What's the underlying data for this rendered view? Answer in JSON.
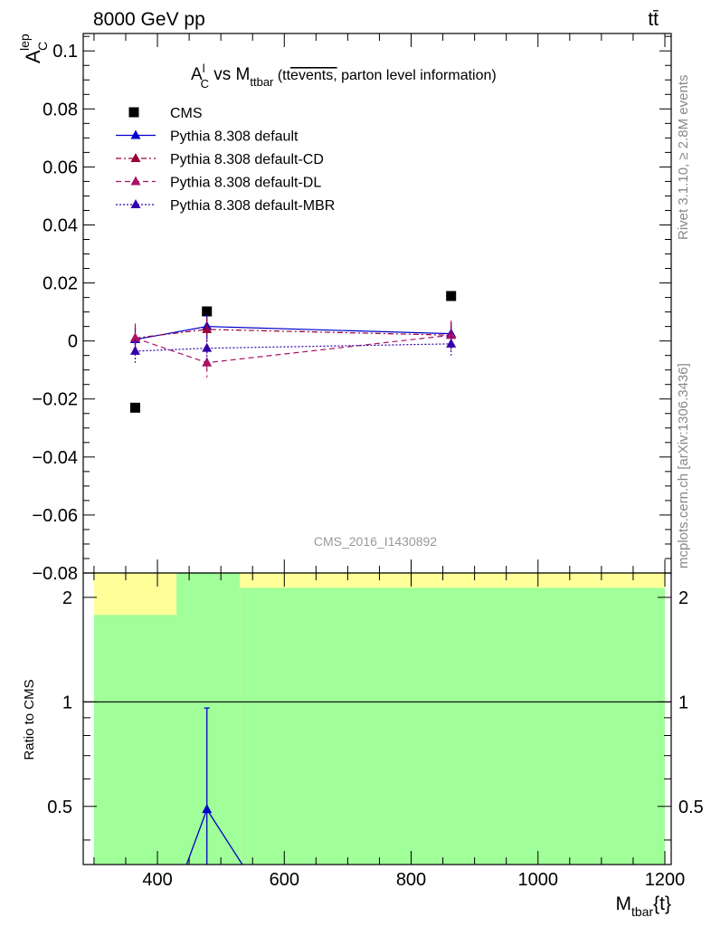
{
  "header": {
    "energy_label": "8000 GeV pp",
    "process_label": "tt̄"
  },
  "side_labels": {
    "rivet": "Rivet 3.1.10, ≥ 2.8M events",
    "source": "mcplots.cern.ch [arXiv:1306.3436]"
  },
  "colors": {
    "data": "#000000",
    "default": "#0000cc",
    "cd": "#990033",
    "dl": "#aa1166",
    "mbr": "#3300aa",
    "band_inner": "#a0ff99",
    "band_outer": "#ffff99"
  },
  "chart_data": [
    {
      "type": "line",
      "title_parts": {
        "a": "A",
        "a_sup": "l",
        "a_sub": "C",
        "vs": " vs M",
        "m_sub": "ttbar",
        "paren_open": " (tt",
        "overline": "events,",
        "rest": " parton level information)"
      },
      "ylabel": {
        "main": "A",
        "sup": "lep",
        "sub": "C"
      },
      "analysis_label": "CMS_2016_I1430892",
      "xlim": [
        283,
        1210
      ],
      "ylim": [
        -0.08,
        0.106
      ],
      "y_ticks": [
        0.1,
        0.08,
        0.06,
        0.04,
        0.02,
        0,
        -0.02,
        -0.04,
        -0.06,
        -0.08
      ],
      "y_tick_labels": [
        "0.1",
        "0.08",
        "0.06",
        "0.04",
        "0.02",
        "0",
        "−0.02",
        "−0.04",
        "−0.06",
        "−0.08"
      ],
      "legend_placement": "top-left",
      "x": [
        365,
        478,
        863
      ],
      "series": [
        {
          "name": "CMS",
          "style": "data",
          "values": [
            -0.023,
            0.0102,
            0.0155
          ]
        },
        {
          "name": "Pythia 8.308 default",
          "style": "solid",
          "values": [
            0.0005,
            0.005,
            0.0025
          ],
          "err": [
            0.004,
            0.004,
            0.004
          ]
        },
        {
          "name": "Pythia 8.308 default-CD",
          "style": "dashdot",
          "values": [
            0.001,
            0.004,
            0.002
          ],
          "err": [
            0.004,
            0.004,
            0.004
          ]
        },
        {
          "name": "Pythia 8.308 default-DL",
          "style": "dashed",
          "values": [
            0.001,
            -0.0075,
            0.002
          ],
          "err": [
            0.005,
            0.005,
            0.005
          ]
        },
        {
          "name": "Pythia 8.308 default-MBR",
          "style": "dotted",
          "values": [
            -0.0035,
            -0.0025,
            -0.001
          ],
          "err": [
            0.004,
            0.004,
            0.004
          ]
        }
      ]
    },
    {
      "type": "line",
      "ylabel": "Ratio to CMS",
      "xlabel": {
        "main": "M",
        "sub": "tbar",
        "rest": "{t}"
      },
      "x_ticks": [
        400,
        600,
        800,
        1000,
        1200
      ],
      "x_tick_labels": [
        "400",
        "600",
        "800",
        "1000",
        "1200"
      ],
      "y_ticks": [
        2,
        1,
        0.5
      ],
      "y_tick_labels": [
        "2",
        "1",
        "0.5"
      ],
      "log_y": true,
      "ylim": [
        0.34,
        2.35
      ],
      "bands": [
        {
          "xmin": 300,
          "xmax": 430,
          "inner": [
            0,
            1.78
          ],
          "outer": [
            0,
            2.35
          ]
        },
        {
          "xmin": 430,
          "xmax": 530,
          "inner": [
            0,
            2.35
          ],
          "outer": [
            0,
            2.35
          ]
        },
        {
          "xmin": 530,
          "xmax": 1200,
          "inner": [
            0,
            2.13
          ],
          "outer": [
            0,
            2.35
          ]
        }
      ],
      "ratio_series": {
        "name": "Pythia 8.308 default",
        "x": [
          435,
          478,
          553
        ],
        "values": [
          0.3,
          0.49,
          0.3
        ],
        "err_point": {
          "x": 478,
          "low": 0.34,
          "high": 0.96
        }
      },
      "reference_line": 1
    }
  ]
}
